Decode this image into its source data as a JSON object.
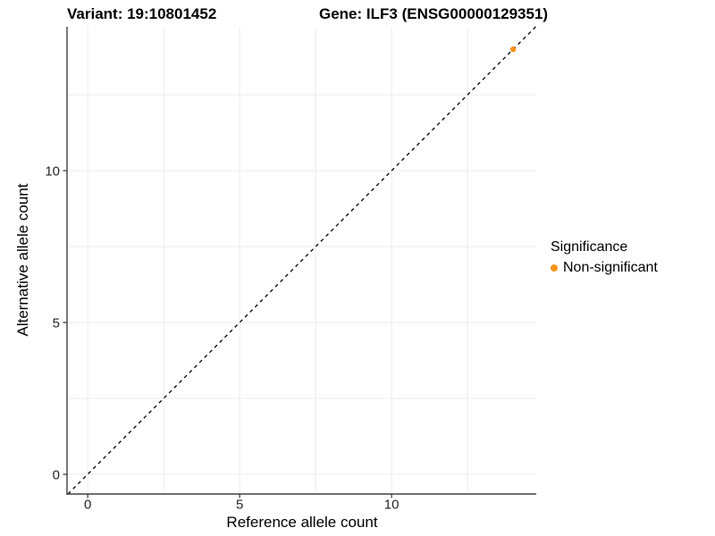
{
  "chart_data": {
    "type": "scatter",
    "title_left": "Variant: 19:10801452",
    "title_right": "Gene: ILF3 (ENSG00000129351)",
    "xlabel": "Reference allele count",
    "ylabel": "Alternative allele count",
    "xlim": [
      -0.68,
      14.76
    ],
    "ylim": [
      -0.65,
      14.74
    ],
    "major_ticks_x": [
      0,
      5,
      10
    ],
    "major_ticks_y": [
      0,
      5,
      10
    ],
    "grid_interval": 2.5,
    "grid_on": true,
    "grid_color": "#ECECEC",
    "axis_color": "#404040",
    "tick_label_color": "#262626",
    "points": [
      {
        "x": 14,
        "y": 14,
        "series": "Non-significant"
      }
    ],
    "abline": {
      "slope": 1,
      "intercept": 0,
      "style": "dashed",
      "color": "#000000"
    },
    "legend": {
      "title": "Significance",
      "position": "right",
      "items": [
        {
          "label": "Non-significant",
          "color": "#F8941E"
        }
      ]
    }
  }
}
